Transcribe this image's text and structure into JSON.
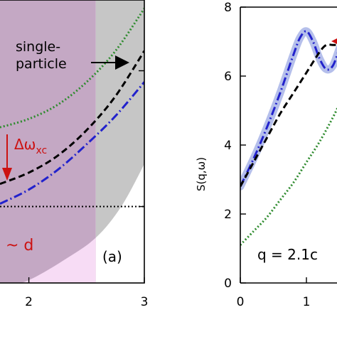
{
  "chart_data": [
    {
      "type": "line",
      "panel_label": "(a)",
      "xlim": [
        1.75,
        3.0
      ],
      "ylim": [
        0.0,
        1.0
      ],
      "x_ticks": [
        "2",
        "3"
      ],
      "x_tick_values": [
        2,
        3
      ],
      "regions": [
        {
          "kind": "band",
          "x": [
            1.75,
            2.58
          ],
          "color": "#c4a8c4"
        },
        {
          "kind": "band",
          "x": [
            2.58,
            3.0
          ],
          "color": "#c6c6c6"
        },
        {
          "kind": "continuum-edge",
          "x": [
            1.75,
            2.0,
            2.3,
            2.58,
            2.8,
            3.0
          ],
          "y": [
            -0.02,
            0.01,
            0.08,
            0.16,
            0.27,
            0.42
          ],
          "below_left": "#f7dcf5",
          "below_right": "#ffffff"
        }
      ],
      "series": [
        {
          "style": "dotted",
          "color": "#2e8b2e",
          "x": [
            1.75,
            2.0,
            2.25,
            2.5,
            2.75,
            3.0
          ],
          "y": [
            0.55,
            0.58,
            0.63,
            0.71,
            0.82,
            0.97
          ]
        },
        {
          "style": "dashed",
          "color": "#000000",
          "x": [
            1.75,
            2.0,
            2.25,
            2.5,
            2.75,
            3.0
          ],
          "y": [
            0.35,
            0.39,
            0.45,
            0.54,
            0.66,
            0.82
          ]
        },
        {
          "style": "dash-dot",
          "color": "#2222cc",
          "x": [
            1.75,
            2.0,
            2.25,
            2.5,
            2.75,
            3.0
          ],
          "y": [
            0.28,
            0.33,
            0.4,
            0.49,
            0.59,
            0.71
          ]
        },
        {
          "style": "dotted-horizontal",
          "color": "#000000",
          "x": [
            1.75,
            3.0
          ],
          "y": [
            0.27,
            0.27
          ]
        }
      ],
      "annotations": {
        "single_particle_line1": "single-",
        "single_particle_line2": "particle",
        "delta_omega": "Δω",
        "delta_omega_sub": "xc",
        "tilde_d": "~ d"
      }
    },
    {
      "type": "line",
      "ylabel": "S(q,ω)",
      "xlim": [
        0,
        1.5
      ],
      "ylim": [
        0,
        8
      ],
      "x_ticks": [
        "0",
        "1"
      ],
      "x_tick_values": [
        0,
        1
      ],
      "y_ticks": [
        "0",
        "2",
        "4",
        "6",
        "8"
      ],
      "y_tick_values": [
        0,
        2,
        4,
        6,
        8
      ],
      "q_label": "q = 2.1c",
      "series": [
        {
          "style": "dash-dot-band",
          "color": "#2222cc",
          "band_color": "#a8b4e8",
          "x": [
            0,
            0.2,
            0.4,
            0.6,
            0.8,
            0.9,
            1.0,
            1.1,
            1.2,
            1.3,
            1.4,
            1.5
          ],
          "y": [
            2.8,
            3.6,
            4.5,
            5.5,
            6.6,
            7.1,
            7.3,
            7.0,
            6.5,
            6.2,
            6.3,
            6.8
          ]
        },
        {
          "style": "dashed",
          "color": "#000000",
          "x": [
            0,
            0.2,
            0.4,
            0.6,
            0.8,
            1.0,
            1.2,
            1.3,
            1.4,
            1.5
          ],
          "y": [
            2.8,
            3.5,
            4.2,
            4.9,
            5.5,
            6.1,
            6.7,
            6.9,
            6.9,
            6.9
          ]
        },
        {
          "style": "dotted",
          "color": "#2e8b2e",
          "x": [
            0,
            0.2,
            0.4,
            0.6,
            0.8,
            1.0,
            1.2,
            1.4,
            1.5
          ],
          "y": [
            1.1,
            1.5,
            1.9,
            2.4,
            2.9,
            3.5,
            4.1,
            4.8,
            5.2
          ]
        }
      ],
      "marker_color": "#cc1111"
    }
  ]
}
